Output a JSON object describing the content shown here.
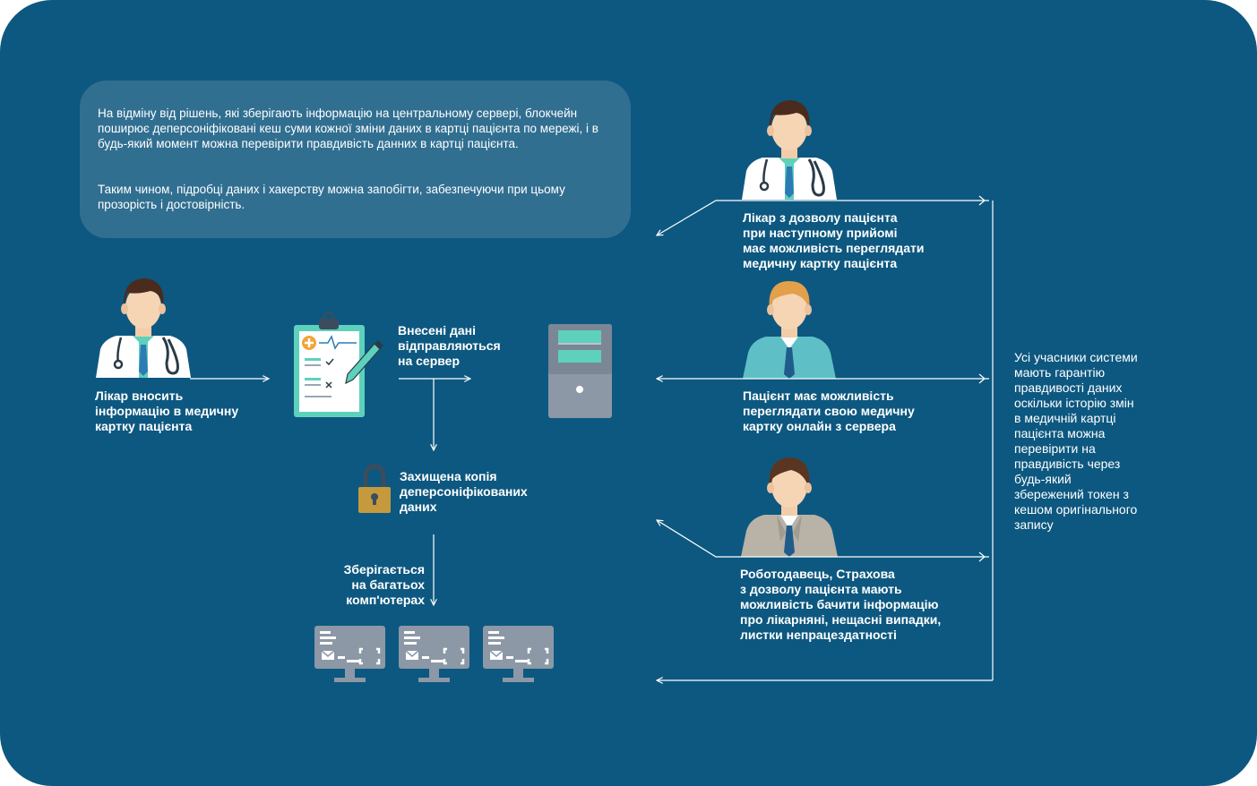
{
  "intro": {
    "paragraph_1": "На відміну від рішень, які зберігають інформацію на центральному сервері, блокчейн поширює деперсоніфіковані кеш суми кожної зміни даних в картці пацієнта по мережі, і в будь-який момент можна перевірити правдивість данних в картці пацієнта.",
    "paragraph_2": "Таким чином, підробці даних і хакерству можна запобігти, забезпечуючи при цьому прозорість і достовірність."
  },
  "labels": {
    "doctor_enters": "Лікар вносить\nінформацію в медичну\nкартку пацієнта",
    "data_sent": "Внесені дані\nвідправляються\nна сервер",
    "protected_copy": "Захищена копія\nдеперсоніфікованих\nданих",
    "stored_many": "Зберігається\nна багатьох\nкомп'ютерах",
    "doctor_views": "Лікар з дозволу пацієнта\nпри наступному прийомі\nмає можливість переглядати\nмедичну картку пацієнта",
    "patient_views": "Пацієнт має можливість\nпереглядати свою медичну\nкартку онлайн з сервера",
    "employer_views": "Роботодавець, Страхова\nз дозволу пацієнта мають\nможливість бачити інформацію\nпро лікарняні, нещасні випадки,\nлистки непрацездатності",
    "guarantee_note": "Усі учасники системи\nмають гарантію\nправдивості даних\nоскільки історію змін\nв медичній картці\nпацієнта можна\nперевірити на\nправдивість через\nбудь-який\nзбережений токен з\nкешом оригінального\nзапису"
  },
  "icons": [
    "doctor-icon",
    "clipboard-icon",
    "server-icon",
    "lock-icon",
    "computer-icon",
    "patient-icon",
    "employer-icon"
  ],
  "colors": {
    "background": "#0d5880",
    "intro_box": "#316f91",
    "text": "#ffffff",
    "accent_teal": "#5ed1bd",
    "coat": "#ffffff",
    "tie_blue": "#2d7bb5",
    "monitor_gray": "#8c98a6",
    "lock_gold": "#c49a3c"
  }
}
